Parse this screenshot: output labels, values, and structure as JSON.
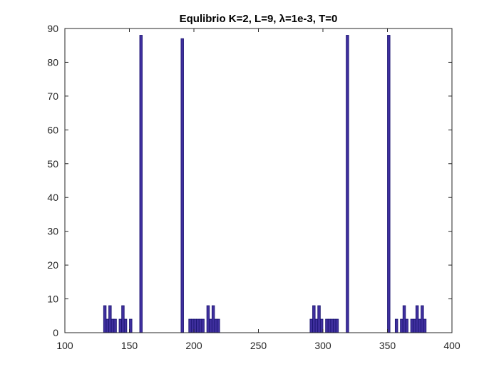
{
  "chart_data": {
    "type": "bar",
    "title": "Equlibrio K=2, L=9, λ=1e-3, T=0",
    "xlabel": "",
    "ylabel": "",
    "xlim": [
      100,
      400
    ],
    "ylim": [
      0,
      90
    ],
    "xticks": [
      100,
      150,
      200,
      250,
      300,
      350,
      400
    ],
    "yticks": [
      0,
      10,
      20,
      30,
      40,
      50,
      60,
      70,
      80,
      90
    ],
    "grid": false,
    "legend": false,
    "bar_width": 2,
    "bar_color": "#3f2f9e",
    "bar_edge_color": "#1a1470",
    "x": [
      131,
      133,
      135,
      137,
      139,
      143,
      145,
      147,
      151,
      159,
      191,
      197,
      199,
      201,
      203,
      205,
      207,
      211,
      213,
      215,
      217,
      219,
      291,
      293,
      295,
      297,
      299,
      303,
      305,
      307,
      309,
      311,
      319,
      351,
      357,
      361,
      363,
      365,
      369,
      371,
      373,
      375,
      377,
      379
    ],
    "values": [
      8,
      4,
      8,
      4,
      4,
      4,
      8,
      4,
      4,
      88,
      87,
      4,
      4,
      4,
      4,
      4,
      4,
      8,
      4,
      8,
      4,
      4,
      4,
      8,
      4,
      8,
      4,
      4,
      4,
      4,
      4,
      4,
      88,
      88,
      4,
      4,
      8,
      4,
      4,
      4,
      8,
      4,
      8,
      4
    ]
  }
}
